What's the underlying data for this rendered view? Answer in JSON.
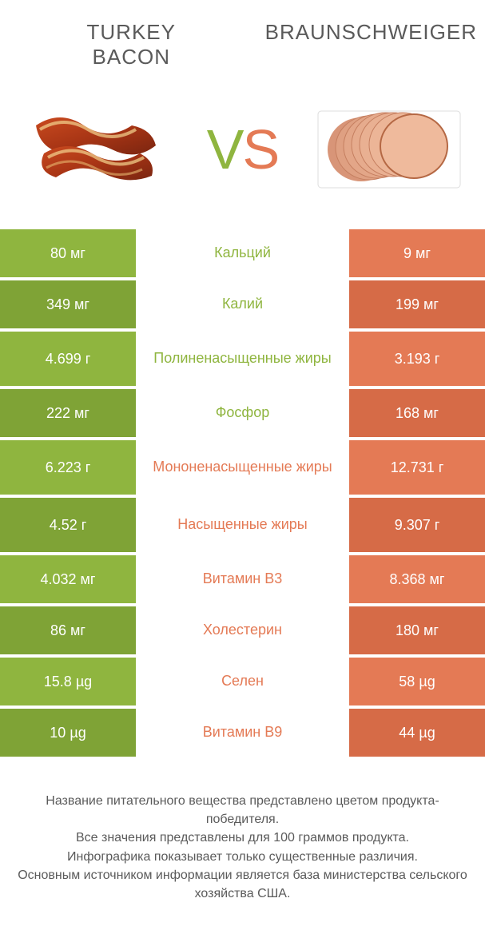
{
  "header": {
    "left_title": "TURKEY\nBACON",
    "right_title": "BRAUNSCHWEIGER"
  },
  "vs": {
    "v": "V",
    "s": "S"
  },
  "colors": {
    "green": "#8fb53f",
    "green_dark": "#7fa336",
    "orange": "#e47a55",
    "orange_dark": "#d66b47",
    "text_gray": "#5a5a5a",
    "white": "#ffffff"
  },
  "rows": [
    {
      "left": "80 мг",
      "label": "Кальций",
      "right": "9 мг",
      "winner": "left",
      "tall": false
    },
    {
      "left": "349 мг",
      "label": "Калий",
      "right": "199 мг",
      "winner": "left",
      "tall": false
    },
    {
      "left": "4.699 г",
      "label": "Полиненасыщенные жиры",
      "right": "3.193 г",
      "winner": "left",
      "tall": true
    },
    {
      "left": "222 мг",
      "label": "Фосфор",
      "right": "168 мг",
      "winner": "left",
      "tall": false
    },
    {
      "left": "6.223 г",
      "label": "Мононенасыщенные жиры",
      "right": "12.731 г",
      "winner": "right",
      "tall": true
    },
    {
      "left": "4.52 г",
      "label": "Насыщенные жиры",
      "right": "9.307 г",
      "winner": "right",
      "tall": true
    },
    {
      "left": "4.032 мг",
      "label": "Витамин B3",
      "right": "8.368 мг",
      "winner": "right",
      "tall": false
    },
    {
      "left": "86 мг",
      "label": "Холестерин",
      "right": "180 мг",
      "winner": "right",
      "tall": false
    },
    {
      "left": "15.8 µg",
      "label": "Селен",
      "right": "58 µg",
      "winner": "right",
      "tall": false
    },
    {
      "left": "10 µg",
      "label": "Витамин B9",
      "right": "44 µg",
      "winner": "right",
      "tall": false
    }
  ],
  "footer": {
    "line1": "Название питательного вещества представлено цветом продукта-победителя.",
    "line2": "Все значения представлены для 100 граммов продукта.",
    "line3": "Инфографика показывает только существенные различия.",
    "line4": "Основным источником информации является база министерства сельского хозяйства США."
  }
}
